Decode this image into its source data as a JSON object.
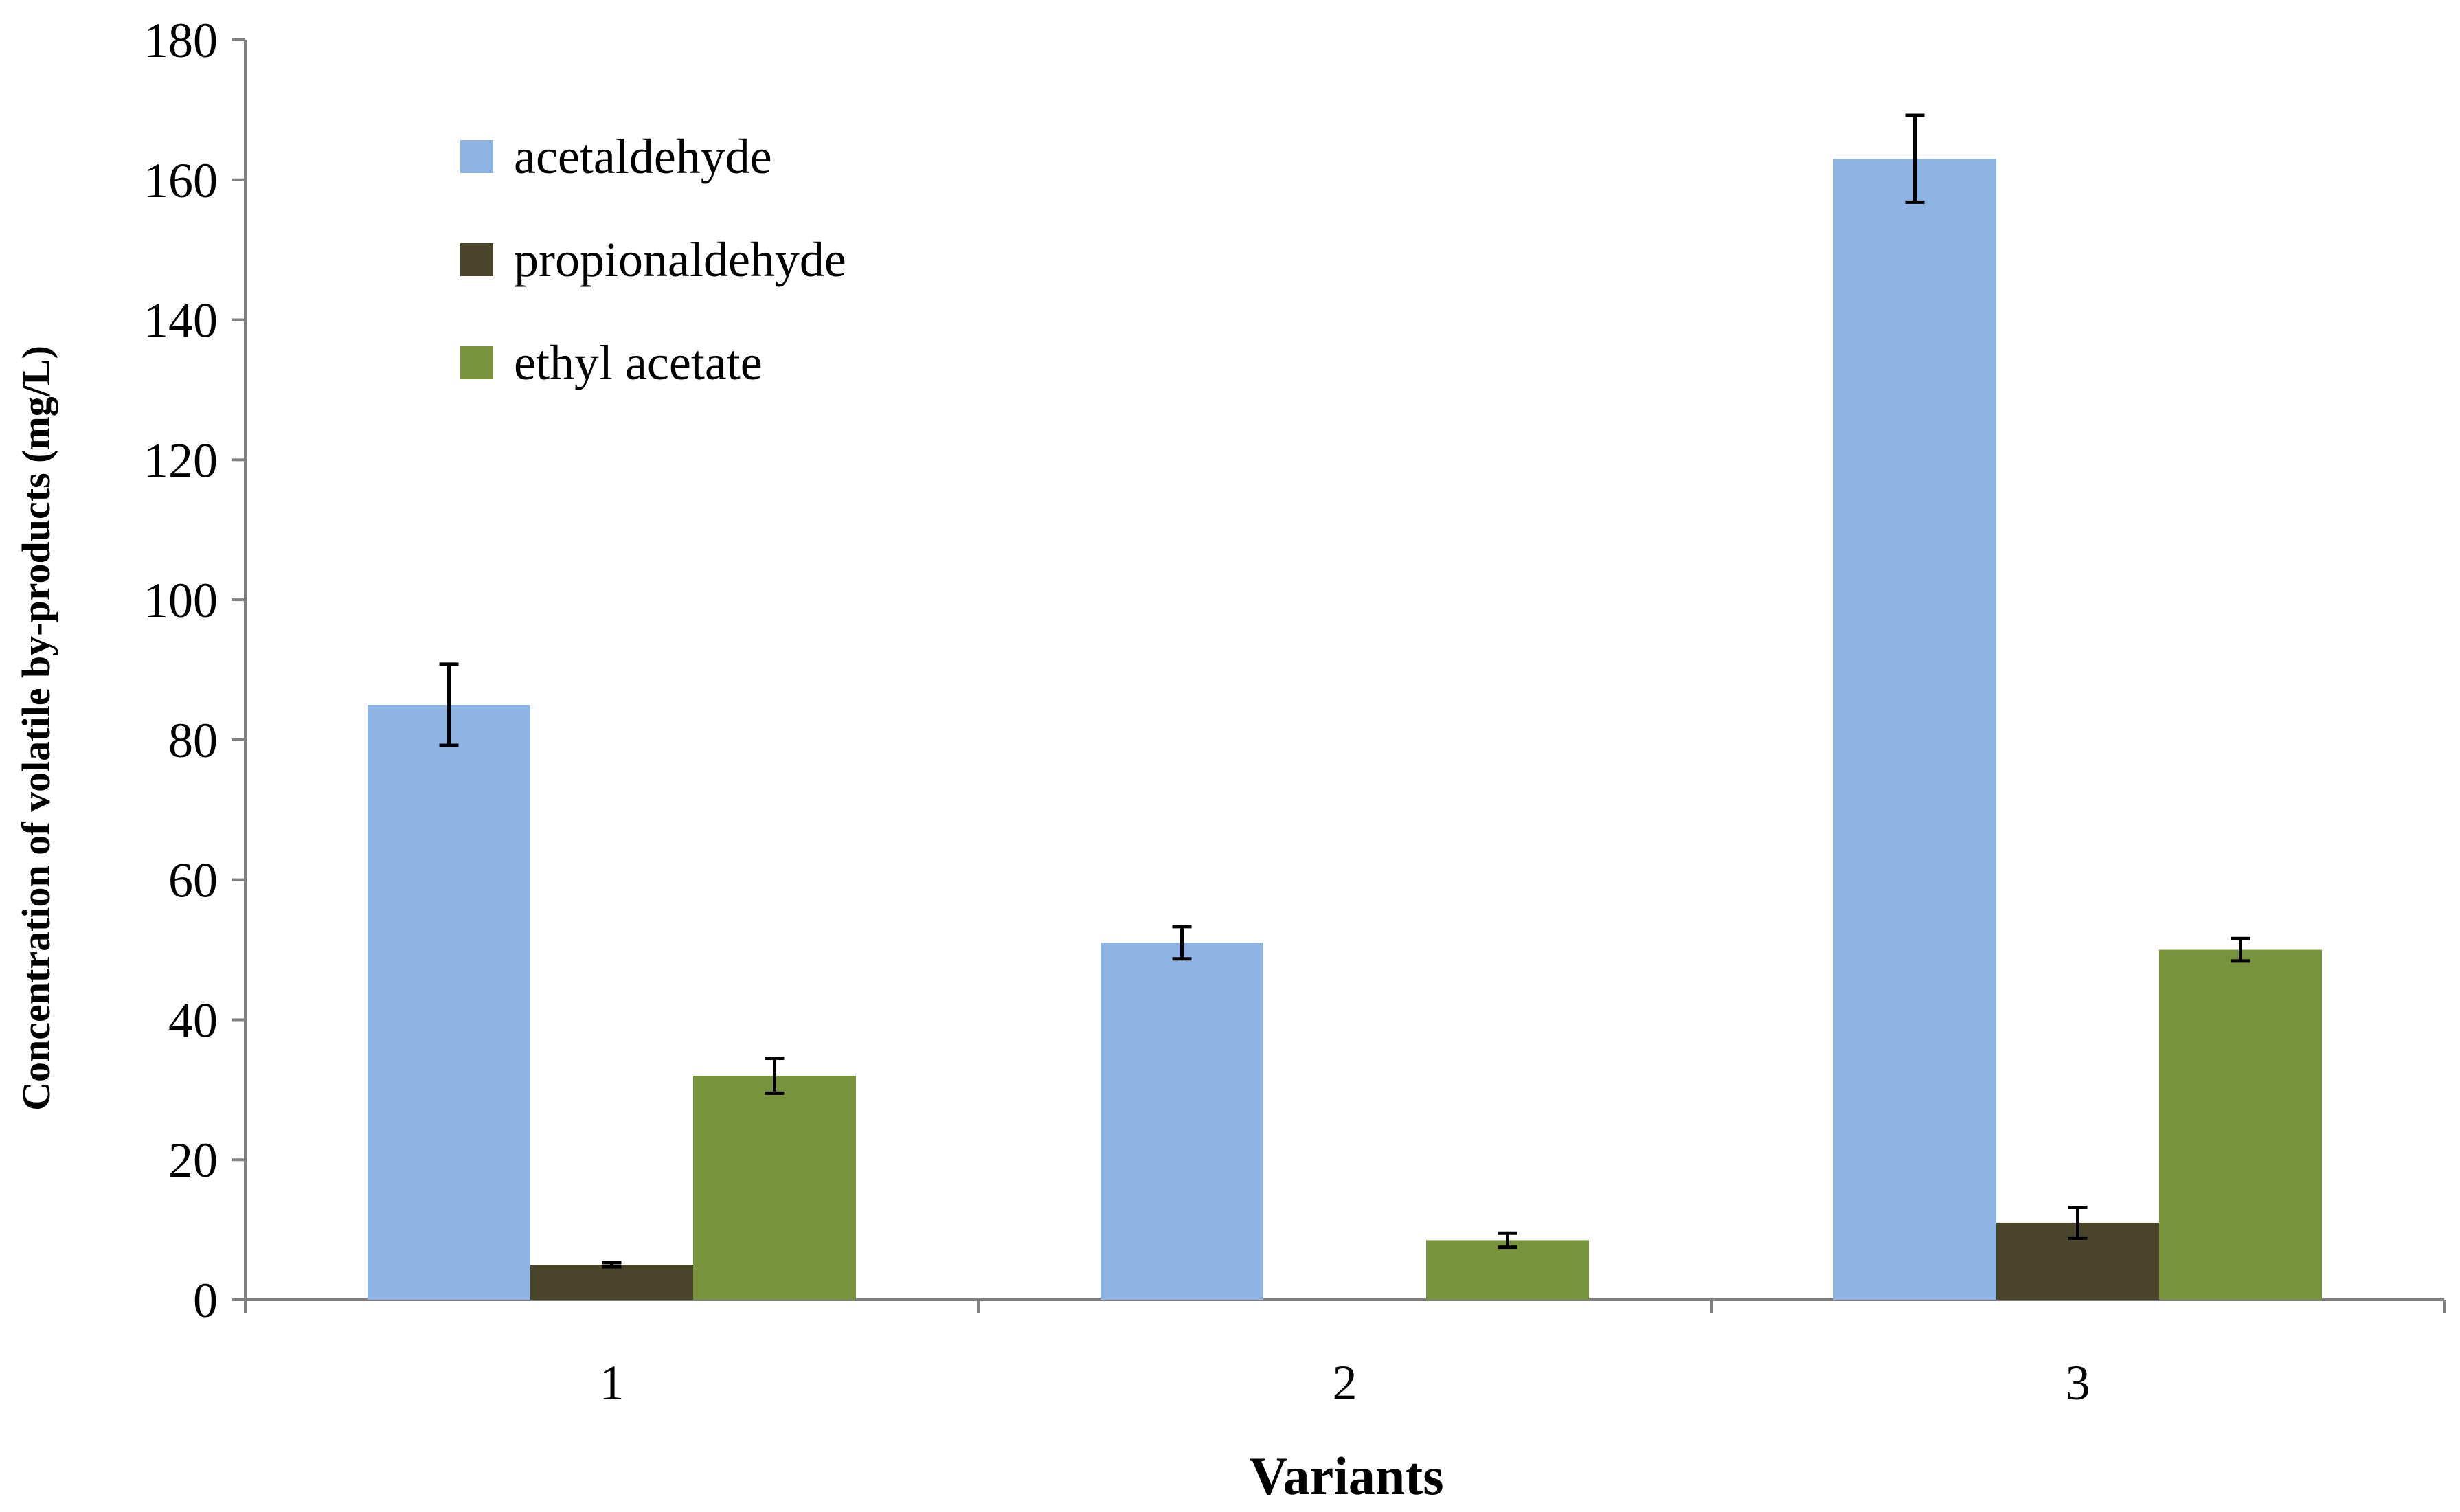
{
  "chart_data": {
    "type": "bar",
    "title": "",
    "xlabel": "Variants",
    "ylabel": "Concentration of volatile by-products (mg/L)",
    "ylim": [
      0,
      180
    ],
    "yticks": [
      0,
      20,
      40,
      60,
      80,
      100,
      120,
      140,
      160,
      180
    ],
    "grid": false,
    "legend_position": "top-left",
    "categories": [
      "1",
      "2",
      "3"
    ],
    "series": [
      {
        "name": "acetaldehyde",
        "color": "#8EB4E3",
        "values": [
          85,
          51,
          163
        ],
        "errors": [
          5.8,
          2.3,
          6.2
        ]
      },
      {
        "name": "propionaldehyde",
        "color": "#4A452A",
        "values": [
          5,
          0,
          11
        ],
        "errors": [
          0.3,
          0,
          2.2
        ]
      },
      {
        "name": "ethyl acetate",
        "color": "#77933C",
        "values": [
          32,
          8.5,
          50
        ],
        "errors": [
          2.5,
          1,
          1.6
        ]
      }
    ]
  }
}
